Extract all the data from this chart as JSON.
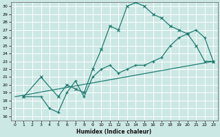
{
  "xlabel": "Humidex (Indice chaleur)",
  "bg_color": "#cce8e5",
  "grid_color": "#b0d8d4",
  "line_color": "#1e7b70",
  "xlim": [
    -0.5,
    23.5
  ],
  "ylim": [
    15.5,
    30.5
  ],
  "xticks": [
    0,
    1,
    2,
    3,
    4,
    5,
    6,
    7,
    8,
    9,
    10,
    11,
    12,
    13,
    14,
    15,
    16,
    17,
    18,
    19,
    20,
    21,
    22,
    23
  ],
  "yticks": [
    16,
    17,
    18,
    19,
    20,
    21,
    22,
    23,
    24,
    25,
    26,
    27,
    28,
    29,
    30
  ],
  "line_peak": {
    "x": [
      1,
      3,
      5,
      6,
      7,
      8,
      9,
      10,
      11,
      12,
      13,
      14,
      15,
      16,
      17,
      18,
      19,
      20,
      21,
      22,
      23
    ],
    "y": [
      18.5,
      21,
      18.5,
      20,
      19.5,
      19,
      22,
      24.5,
      27.5,
      27,
      30,
      30.5,
      30,
      29,
      28.5,
      27.5,
      27,
      26.5,
      25,
      23,
      23
    ]
  },
  "line_mid": {
    "x": [
      1,
      3,
      4,
      5,
      6,
      7,
      8,
      9,
      10,
      11,
      12,
      13,
      14,
      15,
      16,
      17,
      18,
      19,
      20,
      21,
      22,
      23
    ],
    "y": [
      18.5,
      18.5,
      17,
      16.5,
      19,
      20.5,
      18.5,
      21,
      22,
      22.5,
      21.5,
      22,
      22.5,
      22.5,
      23,
      23.5,
      25,
      26,
      26.5,
      27,
      26,
      23
    ]
  },
  "line_base": {
    "x": [
      0,
      23
    ],
    "y": [
      18.5,
      23
    ]
  }
}
